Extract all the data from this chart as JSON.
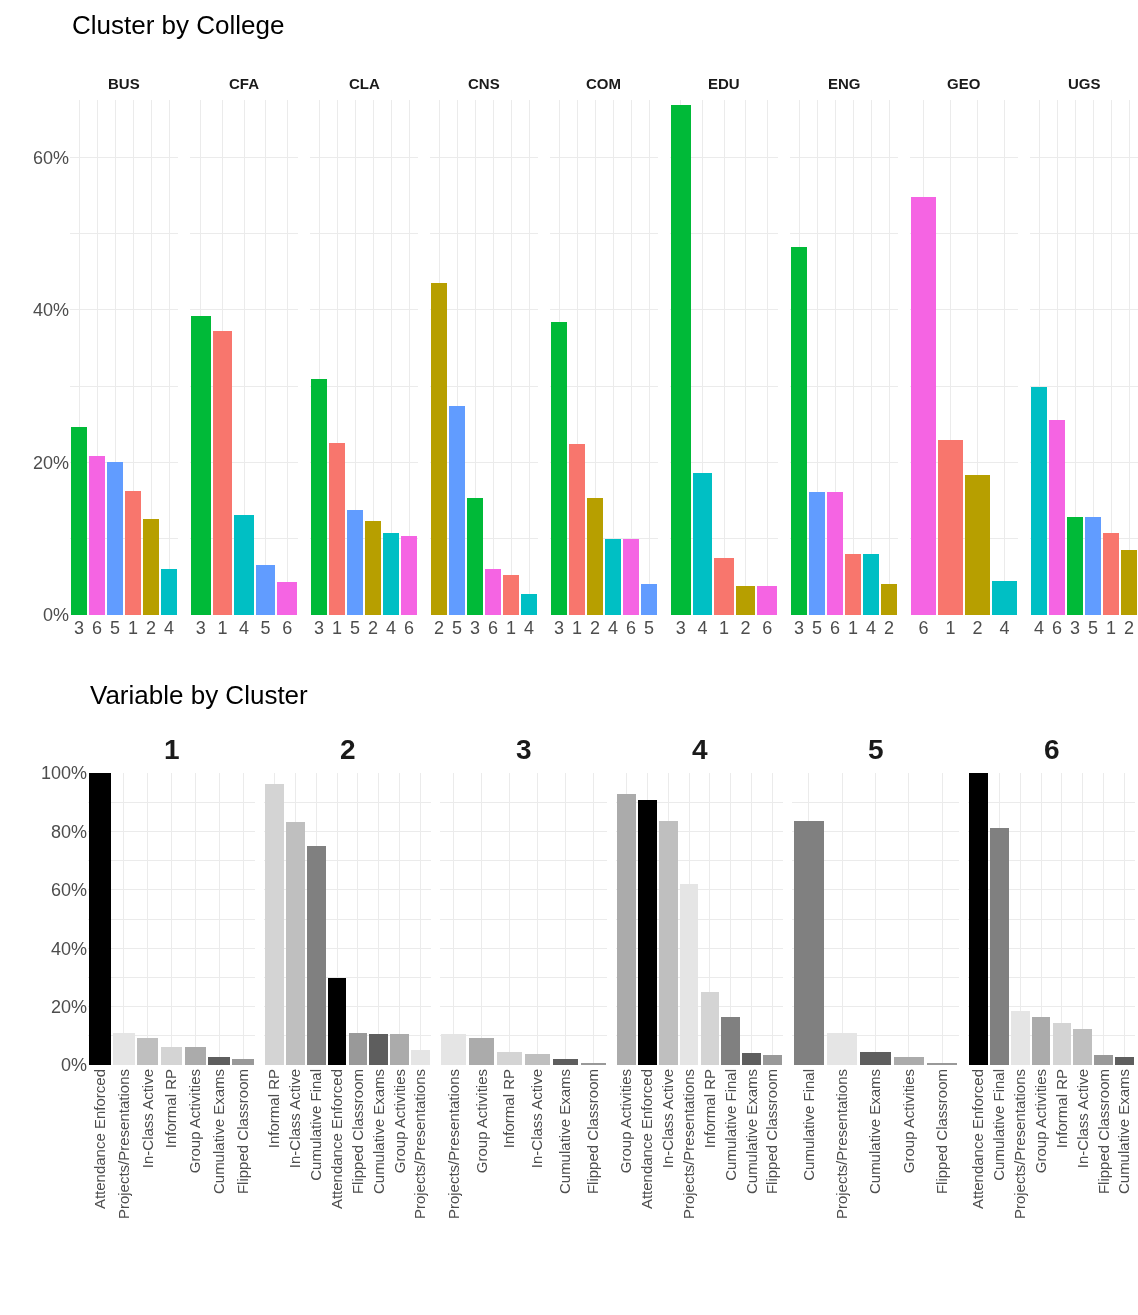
{
  "chart_data": [
    {
      "type": "bar",
      "title": "BUS",
      "annotations": [
        "Cluster by College"
      ],
      "categories": [
        "3",
        "6",
        "5",
        "1",
        "2",
        "4"
      ],
      "values": [
        24.6,
        20.9,
        20.1,
        16.3,
        12.6,
        6.0
      ],
      "colors": [
        "#00ba38",
        "#f564e3",
        "#619cff",
        "#f8766d",
        "#b79f00",
        "#00bfc4"
      ],
      "ylim": [
        0,
        67.5
      ],
      "yticks": [
        {
          "value": 0,
          "label": "0%"
        },
        {
          "value": 10,
          "label": null
        },
        {
          "value": 20,
          "label": "20%"
        },
        {
          "value": 30,
          "label": null
        },
        {
          "value": 40,
          "label": "40%"
        },
        {
          "value": 50,
          "label": null
        },
        {
          "value": 60,
          "label": "60%"
        }
      ],
      "grid": true
    },
    {
      "type": "bar",
      "title": "CFA",
      "categories": [
        "3",
        "1",
        "4",
        "5",
        "6"
      ],
      "values": [
        39.2,
        37.2,
        13.1,
        6.5,
        4.3
      ],
      "colors": [
        "#00ba38",
        "#f8766d",
        "#00bfc4",
        "#619cff",
        "#f564e3"
      ],
      "ylim": [
        0,
        67.5
      ],
      "yticks": [
        {
          "value": 0,
          "label": null
        },
        {
          "value": 10,
          "label": null
        },
        {
          "value": 20,
          "label": null
        },
        {
          "value": 30,
          "label": null
        },
        {
          "value": 40,
          "label": null
        },
        {
          "value": 50,
          "label": null
        },
        {
          "value": 60,
          "label": null
        }
      ],
      "grid": true,
      "tick_labels": "x"
    },
    {
      "type": "bar",
      "title": "CLA",
      "categories": [
        "3",
        "1",
        "5",
        "2",
        "4",
        "6"
      ],
      "values": [
        30.9,
        22.6,
        13.8,
        12.3,
        10.8,
        10.3
      ],
      "colors": [
        "#00ba38",
        "#f8766d",
        "#619cff",
        "#b79f00",
        "#00bfc4",
        "#f564e3"
      ],
      "ylim": [
        0,
        67.5
      ],
      "yticks": [
        {
          "value": 0,
          "label": null
        },
        {
          "value": 10,
          "label": null
        },
        {
          "value": 20,
          "label": null
        },
        {
          "value": 30,
          "label": null
        },
        {
          "value": 40,
          "label": null
        },
        {
          "value": 50,
          "label": null
        },
        {
          "value": 60,
          "label": null
        }
      ],
      "grid": true,
      "tick_labels": "x"
    },
    {
      "type": "bar",
      "title": "CNS",
      "categories": [
        "2",
        "5",
        "3",
        "6",
        "1",
        "4"
      ],
      "values": [
        43.5,
        27.4,
        15.3,
        6.0,
        5.3,
        2.8
      ],
      "colors": [
        "#b79f00",
        "#619cff",
        "#00ba38",
        "#f564e3",
        "#f8766d",
        "#00bfc4"
      ],
      "ylim": [
        0,
        67.5
      ],
      "yticks": [
        {
          "value": 0,
          "label": null
        },
        {
          "value": 10,
          "label": null
        },
        {
          "value": 20,
          "label": null
        },
        {
          "value": 30,
          "label": null
        },
        {
          "value": 40,
          "label": null
        },
        {
          "value": 50,
          "label": null
        },
        {
          "value": 60,
          "label": null
        }
      ],
      "grid": true,
      "tick_labels": "x"
    },
    {
      "type": "bar",
      "title": "COM",
      "categories": [
        "3",
        "1",
        "2",
        "4",
        "6",
        "5"
      ],
      "values": [
        38.4,
        22.4,
        15.3,
        10.0,
        10.0,
        4.0
      ],
      "colors": [
        "#00ba38",
        "#f8766d",
        "#b79f00",
        "#00bfc4",
        "#f564e3",
        "#619cff"
      ],
      "ylim": [
        0,
        67.5
      ],
      "yticks": [
        {
          "value": 0,
          "label": null
        },
        {
          "value": 10,
          "label": null
        },
        {
          "value": 20,
          "label": null
        },
        {
          "value": 30,
          "label": null
        },
        {
          "value": 40,
          "label": null
        },
        {
          "value": 50,
          "label": null
        },
        {
          "value": 60,
          "label": null
        }
      ],
      "grid": true,
      "tick_labels": "x"
    },
    {
      "type": "bar",
      "title": "EDU",
      "categories": [
        "3",
        "4",
        "1",
        "2",
        "6"
      ],
      "values": [
        66.8,
        18.6,
        7.5,
        3.8,
        3.8
      ],
      "colors": [
        "#00ba38",
        "#00bfc4",
        "#f8766d",
        "#b79f00",
        "#f564e3"
      ],
      "ylim": [
        0,
        67.5
      ],
      "yticks": [
        {
          "value": 0,
          "label": null
        },
        {
          "value": 10,
          "label": null
        },
        {
          "value": 20,
          "label": null
        },
        {
          "value": 30,
          "label": null
        },
        {
          "value": 40,
          "label": null
        },
        {
          "value": 50,
          "label": null
        },
        {
          "value": 60,
          "label": null
        }
      ],
      "grid": true,
      "tick_labels": "x"
    },
    {
      "type": "bar",
      "title": "ENG",
      "categories": [
        "3",
        "5",
        "6",
        "1",
        "4",
        "2"
      ],
      "values": [
        48.2,
        16.1,
        16.1,
        8.0,
        8.0,
        4.0
      ],
      "colors": [
        "#00ba38",
        "#619cff",
        "#f564e3",
        "#f8766d",
        "#00bfc4",
        "#b79f00"
      ],
      "ylim": [
        0,
        67.5
      ],
      "yticks": [
        {
          "value": 0,
          "label": null
        },
        {
          "value": 10,
          "label": null
        },
        {
          "value": 20,
          "label": null
        },
        {
          "value": 30,
          "label": null
        },
        {
          "value": 40,
          "label": null
        },
        {
          "value": 50,
          "label": null
        },
        {
          "value": 60,
          "label": null
        }
      ],
      "grid": true,
      "tick_labels": "x"
    },
    {
      "type": "bar",
      "title": "GEO",
      "categories": [
        "6",
        "1",
        "2",
        "4"
      ],
      "values": [
        54.8,
        22.9,
        18.3,
        4.5
      ],
      "colors": [
        "#f564e3",
        "#f8766d",
        "#b79f00",
        "#00bfc4"
      ],
      "ylim": [
        0,
        67.5
      ],
      "yticks": [
        {
          "value": 0,
          "label": null
        },
        {
          "value": 10,
          "label": null
        },
        {
          "value": 20,
          "label": null
        },
        {
          "value": 30,
          "label": null
        },
        {
          "value": 40,
          "label": null
        },
        {
          "value": 50,
          "label": null
        },
        {
          "value": 60,
          "label": null
        }
      ],
      "grid": true,
      "tick_labels": "x"
    },
    {
      "type": "bar",
      "title": "UGS",
      "categories": [
        "4",
        "6",
        "3",
        "5",
        "1",
        "2"
      ],
      "values": [
        29.9,
        25.6,
        12.8,
        12.8,
        10.8,
        8.5
      ],
      "colors": [
        "#00bfc4",
        "#f564e3",
        "#00ba38",
        "#619cff",
        "#f8766d",
        "#b79f00"
      ],
      "ylim": [
        0,
        67.5
      ],
      "yticks": [
        {
          "value": 0,
          "label": null
        },
        {
          "value": 10,
          "label": null
        },
        {
          "value": 20,
          "label": null
        },
        {
          "value": 30,
          "label": null
        },
        {
          "value": 40,
          "label": null
        },
        {
          "value": 50,
          "label": null
        },
        {
          "value": 60,
          "label": null
        }
      ],
      "grid": true,
      "tick_labels": "x"
    },
    {
      "type": "bar",
      "title": "1",
      "annotations": [
        "Variable by Cluster"
      ],
      "categories": [
        "Attendance Enforced",
        "Projects/Presentations",
        "In-Class Active",
        "Informal RP",
        "Group Activities",
        "Cumulative Exams",
        "Flipped Classroom"
      ],
      "values": [
        100,
        11.1,
        9.2,
        6.0,
        6.0,
        2.7,
        1.9
      ],
      "colors": [
        "#000000",
        "#e5e5e5",
        "#bfbfbf",
        "#d4d4d4",
        "#ababab",
        "#5e5e5e",
        "#999999"
      ],
      "ylim": [
        0,
        100
      ],
      "yticks": [
        {
          "value": 0,
          "label": "0%"
        },
        {
          "value": 10,
          "label": null
        },
        {
          "value": 20,
          "label": "20%"
        },
        {
          "value": 30,
          "label": null
        },
        {
          "value": 40,
          "label": "40%"
        },
        {
          "value": 50,
          "label": null
        },
        {
          "value": 60,
          "label": "60%"
        },
        {
          "value": 70,
          "label": null
        },
        {
          "value": 80,
          "label": "80%"
        },
        {
          "value": 90,
          "label": null
        },
        {
          "value": 100,
          "label": "100%"
        }
      ],
      "grid": true
    },
    {
      "type": "bar",
      "title": "2",
      "categories": [
        "Informal RP",
        "In-Class Active",
        "Cumulative Final",
        "Attendance Enforced",
        "Flipped Classroom",
        "Cumulative Exams",
        "Group Activities",
        "Projects/Presentations"
      ],
      "values": [
        96.1,
        83.1,
        75.0,
        29.8,
        11.1,
        10.5,
        10.5,
        5.2
      ],
      "colors": [
        "#d4d4d4",
        "#bfbfbf",
        "#808080",
        "#000000",
        "#999999",
        "#5e5e5e",
        "#ababab",
        "#e5e5e5"
      ],
      "ylim": [
        0,
        100
      ],
      "yticks": [
        {
          "value": 0,
          "label": null
        },
        {
          "value": 10,
          "label": null
        },
        {
          "value": 20,
          "label": null
        },
        {
          "value": 30,
          "label": null
        },
        {
          "value": 40,
          "label": null
        },
        {
          "value": 50,
          "label": null
        },
        {
          "value": 60,
          "label": null
        },
        {
          "value": 70,
          "label": null
        },
        {
          "value": 80,
          "label": null
        },
        {
          "value": 90,
          "label": null
        },
        {
          "value": 100,
          "label": null
        }
      ],
      "grid": true,
      "tick_labels": "x"
    },
    {
      "type": "bar",
      "title": "3",
      "categories": [
        "Projects/Presentations",
        "Group Activities",
        "Informal RP",
        "In-Class Active",
        "Cumulative Exams",
        "Flipped Classroom"
      ],
      "values": [
        10.5,
        9.2,
        4.5,
        3.9,
        1.9,
        0.6
      ],
      "colors": [
        "#e5e5e5",
        "#ababab",
        "#d4d4d4",
        "#bfbfbf",
        "#5e5e5e",
        "#999999"
      ],
      "ylim": [
        0,
        100
      ],
      "yticks": [
        {
          "value": 0,
          "label": null
        },
        {
          "value": 10,
          "label": null
        },
        {
          "value": 20,
          "label": null
        },
        {
          "value": 30,
          "label": null
        },
        {
          "value": 40,
          "label": null
        },
        {
          "value": 50,
          "label": null
        },
        {
          "value": 60,
          "label": null
        },
        {
          "value": 70,
          "label": null
        },
        {
          "value": 80,
          "label": null
        },
        {
          "value": 90,
          "label": null
        },
        {
          "value": 100,
          "label": null
        }
      ],
      "grid": true,
      "tick_labels": "x"
    },
    {
      "type": "bar",
      "title": "4",
      "categories": [
        "Group Activities",
        "Attendance Enforced",
        "In-Class Active",
        "Projects/Presentations",
        "Informal RP",
        "Cumulative Final",
        "Cumulative Exams",
        "Flipped Classroom"
      ],
      "values": [
        92.9,
        90.9,
        83.7,
        62.0,
        25.1,
        16.4,
        4.0,
        3.4
      ],
      "colors": [
        "#ababab",
        "#000000",
        "#bfbfbf",
        "#e5e5e5",
        "#d4d4d4",
        "#808080",
        "#5e5e5e",
        "#999999"
      ],
      "ylim": [
        0,
        100
      ],
      "yticks": [
        {
          "value": 0,
          "label": null
        },
        {
          "value": 10,
          "label": null
        },
        {
          "value": 20,
          "label": null
        },
        {
          "value": 30,
          "label": null
        },
        {
          "value": 40,
          "label": null
        },
        {
          "value": 50,
          "label": null
        },
        {
          "value": 60,
          "label": null
        },
        {
          "value": 70,
          "label": null
        },
        {
          "value": 80,
          "label": null
        },
        {
          "value": 90,
          "label": null
        },
        {
          "value": 100,
          "label": null
        }
      ],
      "grid": true,
      "tick_labels": "x"
    },
    {
      "type": "bar",
      "title": "5",
      "categories": [
        "Cumulative Final",
        "Projects/Presentations",
        "Cumulative Exams",
        "Group Activities",
        "Flipped Classroom"
      ],
      "values": [
        83.7,
        11.1,
        4.5,
        2.6,
        0.6
      ],
      "colors": [
        "#808080",
        "#e5e5e5",
        "#5e5e5e",
        "#ababab",
        "#999999"
      ],
      "ylim": [
        0,
        100
      ],
      "yticks": [
        {
          "value": 0,
          "label": null
        },
        {
          "value": 10,
          "label": null
        },
        {
          "value": 20,
          "label": null
        },
        {
          "value": 30,
          "label": null
        },
        {
          "value": 40,
          "label": null
        },
        {
          "value": 50,
          "label": null
        },
        {
          "value": 60,
          "label": null
        },
        {
          "value": 70,
          "label": null
        },
        {
          "value": 80,
          "label": null
        },
        {
          "value": 90,
          "label": null
        },
        {
          "value": 100,
          "label": null
        }
      ],
      "grid": true,
      "tick_labels": "x"
    },
    {
      "type": "bar",
      "title": "6",
      "categories": [
        "Attendance Enforced",
        "Cumulative Final",
        "Projects/Presentations",
        "Group Activities",
        "Informal RP",
        "In-Class Active",
        "Flipped Classroom",
        "Cumulative Exams"
      ],
      "values": [
        100,
        81.0,
        18.4,
        16.4,
        14.5,
        12.5,
        3.4,
        2.6
      ],
      "colors": [
        "#000000",
        "#808080",
        "#e5e5e5",
        "#ababab",
        "#d4d4d4",
        "#bfbfbf",
        "#999999",
        "#5e5e5e"
      ],
      "ylim": [
        0,
        100
      ],
      "yticks": [
        {
          "value": 0,
          "label": null
        },
        {
          "value": 10,
          "label": null
        },
        {
          "value": 20,
          "label": null
        },
        {
          "value": 30,
          "label": null
        },
        {
          "value": 40,
          "label": null
        },
        {
          "value": 50,
          "label": null
        },
        {
          "value": 60,
          "label": null
        },
        {
          "value": 70,
          "label": null
        },
        {
          "value": 80,
          "label": null
        },
        {
          "value": 90,
          "label": null
        },
        {
          "value": 100,
          "label": null
        }
      ],
      "grid": true,
      "tick_labels": "x"
    }
  ]
}
